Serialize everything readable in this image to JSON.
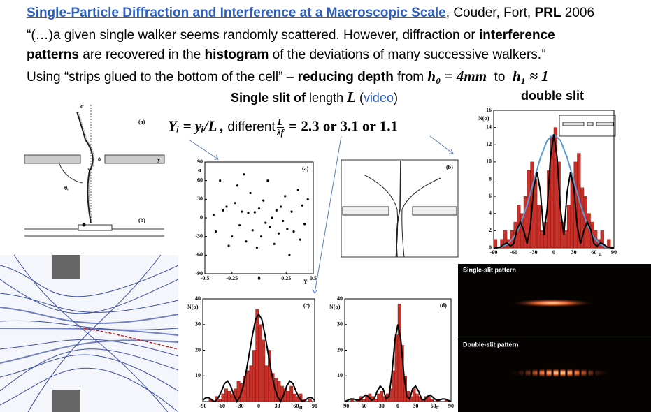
{
  "header": {
    "title_link": "Single-Particle Diffraction and Interference at a Macroscopic Scale",
    "authors": ", Couder, Fort,",
    "journal": "PRL",
    "year": "2006"
  },
  "quote": {
    "part1": "“(…)a given single walker seems randomly scattered. However, diffraction or",
    "bold1": "interference",
    "bold2": "patterns",
    "part2": "are recovered in the",
    "bold3": "histogram",
    "part3": "of the deviations of many successive walkers.”"
  },
  "method": {
    "text1": "Using “strips glued to the bottom of the cell” –",
    "bold": "reducing depth",
    "text2": "from",
    "math1": "h₀ = 4mm",
    "text3": "to",
    "math2": "h₁ ≈ 1"
  },
  "subtitles": {
    "single": "Single slit of",
    "length": "length",
    "L": "L",
    "paren_open": "(",
    "video": "video",
    "paren_close": ")",
    "double": "double slit"
  },
  "formula": {
    "lhs": "Yᵢ = yᵢ/L ,",
    "different": "different",
    "frac_num": "L",
    "frac_den": "λf",
    "rhs": "= 2.3 or 3.1 or 1.1"
  },
  "diagram": {
    "alpha": "α",
    "panel_a": "(a)",
    "zero": "0",
    "y": "y",
    "Yi": "Yᵢ",
    "theta": "θᵢ",
    "panel_b": "(b)"
  },
  "trajectories": {
    "panel": "(b)"
  },
  "patterns": {
    "single": "Single-slit pattern",
    "double": "Double-slit pattern"
  },
  "figures": {
    "scatter": {
      "type": "scatter",
      "panel": "(a)",
      "y_label": "α",
      "x_label": "Yᵢ",
      "color": "#000000",
      "xlim": [
        -0.5,
        0.5
      ],
      "ylim": [
        -90,
        90
      ],
      "xticks": [
        -0.5,
        -0.25,
        0,
        0.25,
        0.5
      ],
      "yticks": [
        90,
        60,
        30,
        0,
        -30,
        -60,
        -90
      ],
      "x": [
        -0.42,
        -0.4,
        -0.36,
        -0.33,
        -0.3,
        -0.28,
        -0.25,
        -0.22,
        -0.2,
        -0.18,
        -0.16,
        -0.14,
        -0.12,
        -0.1,
        -0.08,
        -0.06,
        -0.04,
        -0.02,
        0,
        0.02,
        0.04,
        0.06,
        0.08,
        0.1,
        0.12,
        0.14,
        0.16,
        0.18,
        0.2,
        0.22,
        0.24,
        0.26,
        0.28,
        0.3,
        0.32,
        0.36,
        0.38,
        0.4,
        0.42,
        0.45
      ],
      "y": [
        5,
        -22,
        60,
        12,
        18,
        -45,
        -30,
        24,
        52,
        -12,
        10,
        70,
        -38,
        8,
        40,
        -20,
        9,
        -48,
        15,
        -30,
        28,
        -8,
        60,
        -15,
        0,
        -42,
        12,
        -25,
        18,
        -5,
        35,
        -18,
        -60,
        10,
        -22,
        45,
        -35,
        20,
        -10,
        30
      ]
    },
    "double": {
      "type": "histogram",
      "y_label": "N(α)",
      "x_label": "α",
      "color": "#c8302a",
      "xlim": [
        -90,
        90
      ],
      "ylim": [
        0,
        16
      ],
      "xticks": [
        -90,
        -60,
        -30,
        0,
        30,
        60,
        90
      ],
      "yticks": [
        0,
        2,
        4,
        6,
        8,
        10,
        12,
        14,
        16
      ],
      "bins": [
        -90,
        -85,
        -80,
        -75,
        -70,
        -65,
        -60,
        -55,
        -50,
        -45,
        -40,
        -35,
        -30,
        -25,
        -20,
        -15,
        -10,
        -5,
        0,
        5,
        10,
        15,
        20,
        25,
        30,
        35,
        40,
        45,
        50,
        55,
        60,
        65,
        70,
        75,
        80,
        85,
        90
      ],
      "counts": [
        1,
        0,
        1,
        2,
        1,
        2,
        3,
        5,
        4,
        6,
        9,
        10,
        8,
        5,
        2,
        3,
        9,
        13,
        14,
        10,
        3,
        2,
        5,
        8,
        10,
        11,
        7,
        6,
        4,
        3,
        2,
        1,
        2,
        0,
        1,
        0
      ],
      "curves": [
        {
          "color": "#5b9bd5",
          "x": [
            -90,
            -80,
            -70,
            -60,
            -50,
            -40,
            -30,
            -20,
            -10,
            0,
            10,
            20,
            30,
            40,
            50,
            60,
            70,
            80,
            90
          ],
          "values": [
            0,
            0.1,
            0.4,
            1.2,
            2.7,
            5,
            7.8,
            10.5,
            12.5,
            13.2,
            12.5,
            10.5,
            7.8,
            5,
            2.7,
            1.2,
            0.4,
            0.1,
            0
          ]
        },
        {
          "color": "#000000",
          "x": [
            -90,
            -85,
            -80,
            -75,
            -70,
            -65,
            -60,
            -55,
            -50,
            -45,
            -40,
            -35,
            -30,
            -25,
            -20,
            -15,
            -10,
            -5,
            0,
            5,
            10,
            15,
            20,
            25,
            30,
            35,
            40,
            45,
            50,
            55,
            60,
            65,
            70,
            75,
            80,
            85,
            90
          ],
          "values": [
            0,
            0,
            0.1,
            0.4,
            0.6,
            0.2,
            0.5,
            2.2,
            3,
            2,
            0.5,
            2.5,
            7,
            8.8,
            6.5,
            1.5,
            4.5,
            10.5,
            13.2,
            10.5,
            4.5,
            1.5,
            6.5,
            8.8,
            7,
            2.5,
            0.5,
            2,
            3,
            2.2,
            0.5,
            0.2,
            0.6,
            0.4,
            0.1,
            0,
            0
          ]
        }
      ]
    },
    "single_c": {
      "type": "histogram",
      "panel": "(c)",
      "y_label": "N(α)",
      "x_label": "α",
      "color": "#c8302a",
      "xlim": [
        -90,
        90
      ],
      "ylim": [
        0,
        40
      ],
      "xticks": [
        -90,
        -60,
        -30,
        0,
        30,
        60,
        90
      ],
      "yticks": [
        10,
        20,
        30,
        40
      ],
      "bins": [
        -90,
        -85,
        -80,
        -75,
        -70,
        -65,
        -60,
        -55,
        -50,
        -45,
        -40,
        -35,
        -30,
        -25,
        -20,
        -15,
        -10,
        -5,
        0,
        5,
        10,
        15,
        20,
        25,
        30,
        35,
        40,
        45,
        50,
        55,
        60,
        65,
        70,
        75,
        80,
        85,
        90
      ],
      "counts": [
        0,
        0,
        1,
        0,
        2,
        1,
        3,
        5,
        4,
        3,
        5,
        8,
        7,
        10,
        12,
        14,
        20,
        36,
        30,
        24,
        14,
        20,
        11,
        9,
        8,
        6,
        5,
        4,
        6,
        3,
        2,
        3,
        1,
        0,
        1,
        0
      ],
      "curves": [
        {
          "color": "#000000",
          "x": [
            -90,
            -85,
            -80,
            -75,
            -70,
            -65,
            -60,
            -55,
            -50,
            -45,
            -40,
            -35,
            -30,
            -25,
            -20,
            -15,
            -10,
            -5,
            0,
            5,
            10,
            15,
            20,
            25,
            30,
            35,
            40,
            45,
            50,
            55,
            60,
            65,
            70,
            75,
            80,
            85,
            90
          ],
          "values": [
            0.5,
            1.5,
            1.5,
            0.5,
            0,
            1.5,
            4,
            7,
            8,
            6,
            2.5,
            0,
            2,
            6,
            12,
            19,
            26,
            32,
            34,
            32,
            26,
            19,
            12,
            6,
            2,
            0,
            2.5,
            6,
            8,
            7,
            4,
            1.5,
            0,
            0.5,
            1.5,
            1.5,
            0.5
          ]
        }
      ]
    },
    "single_d": {
      "type": "histogram",
      "panel": "(d)",
      "y_label": "N(α)",
      "x_label": "α",
      "color": "#c8302a",
      "xlim": [
        -90,
        90
      ],
      "ylim": [
        0,
        40
      ],
      "xticks": [
        {
          "value": -90,
          "label": "−90"
        },
        {
          "value": -60,
          "label": "−60"
        },
        {
          "value": -30,
          "label": "−30"
        },
        0,
        30,
        60,
        90
      ],
      "yticks": [
        10,
        20,
        30,
        40
      ],
      "bins": [
        -90,
        -85,
        -80,
        -75,
        -70,
        -65,
        -60,
        -55,
        -50,
        -45,
        -40,
        -35,
        -30,
        -25,
        -20,
        -15,
        -10,
        -5,
        0,
        5,
        10,
        15,
        20,
        25,
        30,
        35,
        40,
        45,
        50,
        55,
        60,
        65,
        70,
        75,
        80,
        85,
        90
      ],
      "counts": [
        0,
        0,
        1,
        0,
        1,
        2,
        1,
        2,
        3,
        2,
        1,
        3,
        4,
        2,
        3,
        5,
        12,
        26,
        38,
        22,
        10,
        4,
        2,
        5,
        3,
        2,
        1,
        2,
        2,
        1,
        0,
        1,
        0,
        0,
        1,
        0
      ],
      "curves": [
        {
          "color": "#000000",
          "x": [
            -90,
            -85,
            -80,
            -75,
            -70,
            -65,
            -60,
            -55,
            -50,
            -45,
            -40,
            -35,
            -30,
            -25,
            -20,
            -15,
            -10,
            -5,
            0,
            5,
            10,
            15,
            20,
            25,
            30,
            35,
            40,
            45,
            50,
            55,
            60,
            65,
            70,
            75,
            80,
            85,
            90
          ],
          "values": [
            0,
            0.5,
            1,
            1,
            0.5,
            0.5,
            1.5,
            2.5,
            2,
            0.5,
            1,
            4,
            6,
            5,
            1,
            2,
            11,
            24,
            30,
            24,
            11,
            2,
            1,
            5,
            6,
            4,
            1,
            0.5,
            2,
            2.5,
            1.5,
            0.5,
            0.5,
            1,
            1,
            0.5,
            0
          ]
        }
      ]
    }
  }
}
